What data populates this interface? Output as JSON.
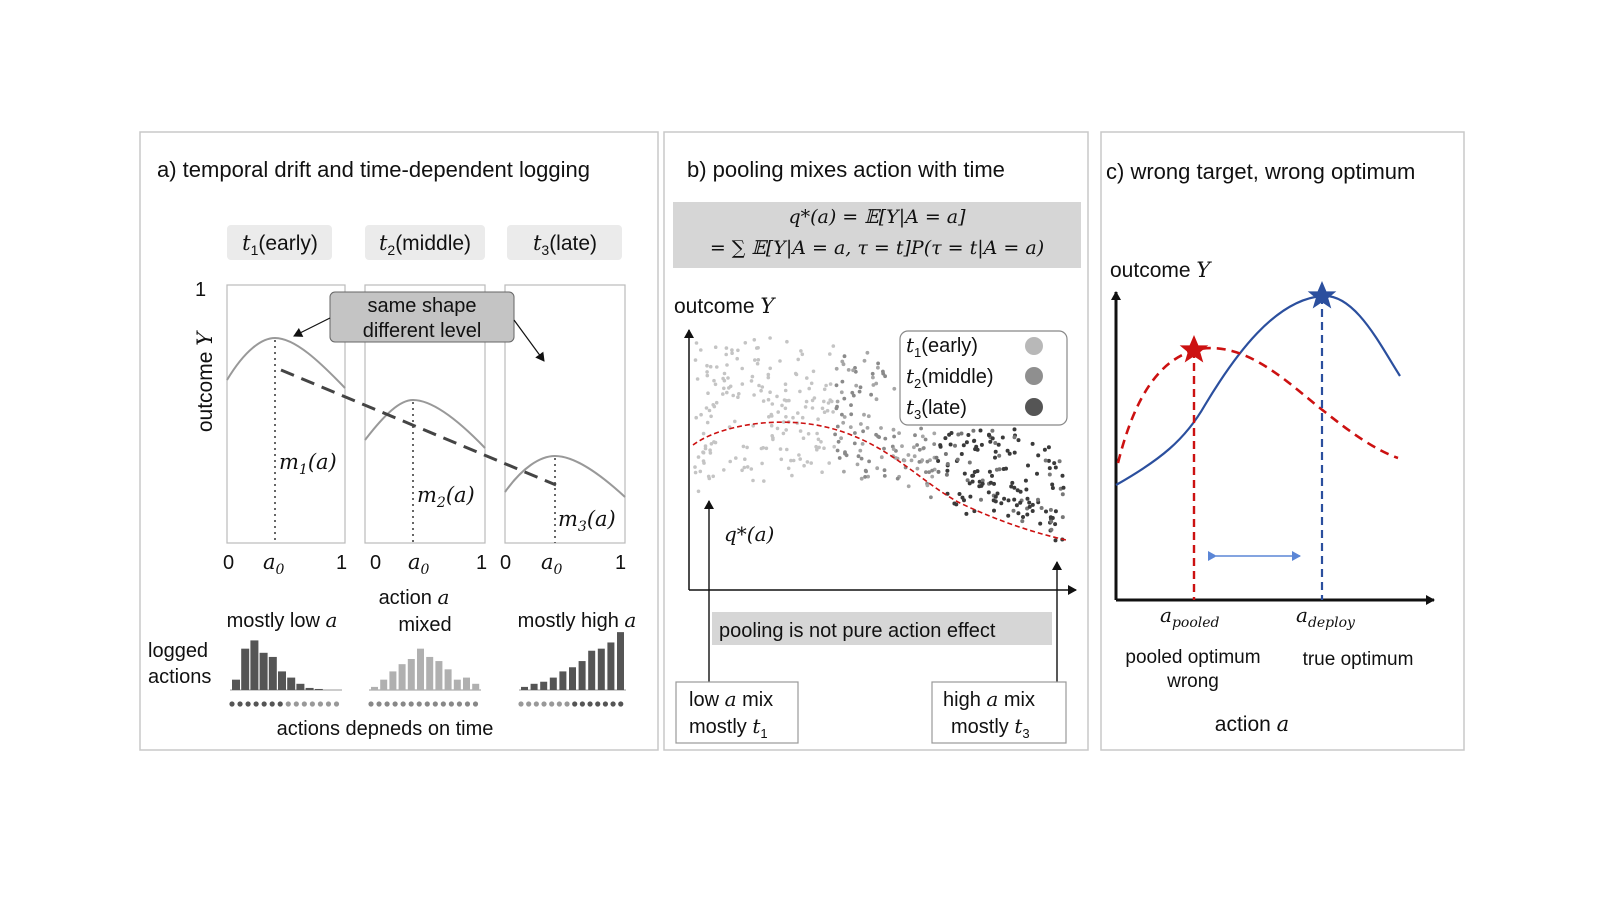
{
  "panel_a": {
    "title": "a) temporal drift and time-dependent logging",
    "periods": [
      {
        "sym": "t",
        "sub": "1",
        "label": "(early)"
      },
      {
        "sym": "t",
        "sub": "2",
        "label": "(middle)"
      },
      {
        "sym": "t",
        "sub": "3",
        "label": "(late)"
      }
    ],
    "y_top": "1",
    "y_label_main": "outcome ",
    "y_label_sym": "Y",
    "callout_line1": "same shape",
    "callout_line2": "different level",
    "m_labels": [
      {
        "sym": "m",
        "sub": "1",
        "arg": "(a)"
      },
      {
        "sym": "m",
        "sub": "2",
        "arg": "(a)"
      },
      {
        "sym": "m",
        "sub": "3",
        "arg": "(a)"
      }
    ],
    "tick_zero": "0",
    "tick_one": "1",
    "a0_sym": "a",
    "a0_sub": "0",
    "x_label_main": "action ",
    "x_label_sym": "a",
    "mix_labels": [
      {
        "main": "mostly low ",
        "sym": "a"
      },
      {
        "main": "mixed",
        "sym": ""
      },
      {
        "main": "mostly high ",
        "sym": "a"
      }
    ],
    "logged_line1": "logged",
    "logged_line2": "actions",
    "footer": "actions depneds on time",
    "histograms": [
      [
        10,
        40,
        48,
        36,
        32,
        18,
        12,
        6,
        2,
        1
      ],
      [
        3,
        10,
        18,
        25,
        30,
        40,
        32,
        28,
        20,
        10,
        12,
        6
      ],
      [
        3,
        6,
        8,
        12,
        18,
        22,
        28,
        38,
        40,
        46,
        56
      ]
    ]
  },
  "panel_b": {
    "title": "b) pooling mixes action with time",
    "formula_line1": "q*(a) = 𝔼[Y|A = a]",
    "formula_line2": "= ∑ 𝔼[Y|A = a, τ = t]P(τ = t|A = a)",
    "y_label_main": "outcome ",
    "y_label_sym": "Y",
    "legend": [
      {
        "sym": "t",
        "sub": "1",
        "label": "(early)",
        "color": "#b8b8b8"
      },
      {
        "sym": "t",
        "sub": "2",
        "label": "(middle)",
        "color": "#8f8f8f"
      },
      {
        "sym": "t",
        "sub": "3",
        "label": "(late)",
        "color": "#555555"
      }
    ],
    "curve_label": "q*(a)",
    "curve_color": "#cc1111",
    "banner": "pooling is not pure action effect",
    "banner_color": "#cc1111",
    "left_box_line1_main": "low ",
    "left_box_line1_sym": "a",
    "left_box_line1_tail": " mix",
    "left_box_line2_main": "mostly ",
    "left_box_line2_sym": "t",
    "left_box_line2_sub": "1",
    "right_box_line1_main": "high ",
    "right_box_line1_sym": "a",
    "right_box_line1_tail": " mix",
    "right_box_line2_main": "mostly ",
    "right_box_line2_sym": "t",
    "right_box_line2_sub": "3"
  },
  "panel_c": {
    "title": "c) wrong target, wrong optimum",
    "y_label_main": "outcome ",
    "y_label_sym": "Y",
    "pooled_sym": "a",
    "pooled_sub": "pooled",
    "deploy_sym": "a",
    "deploy_sub": "deploy",
    "pooled_caption_line1": "pooled optimum",
    "pooled_caption_line2": "wrong",
    "true_caption": "true optimum",
    "x_label_main": "action ",
    "x_label_sym": "a",
    "pooled_color": "#cc1111",
    "true_color": "#2b4f9e",
    "arrow_color": "#5b86d6"
  }
}
